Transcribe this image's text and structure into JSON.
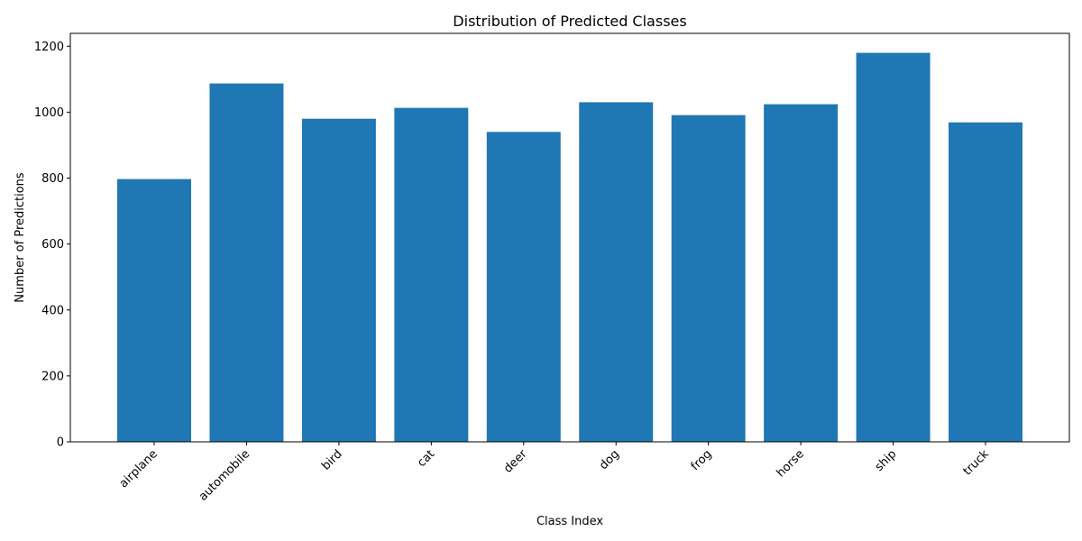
{
  "chart_data": {
    "type": "bar",
    "title": "Distribution of Predicted Classes",
    "xlabel": "Class Index",
    "ylabel": "Number of Predictions",
    "categories": [
      "airplane",
      "automobile",
      "bird",
      "cat",
      "deer",
      "dog",
      "frog",
      "horse",
      "ship",
      "truck"
    ],
    "values": [
      797,
      1087,
      980,
      1013,
      940,
      1030,
      991,
      1024,
      1180,
      969
    ],
    "ylim": [
      0,
      1239
    ],
    "yticks": [
      0,
      200,
      400,
      600,
      800,
      1000,
      1200
    ],
    "grid": false,
    "bar_color": "#1f77b4",
    "xtick_rotation": 45
  }
}
